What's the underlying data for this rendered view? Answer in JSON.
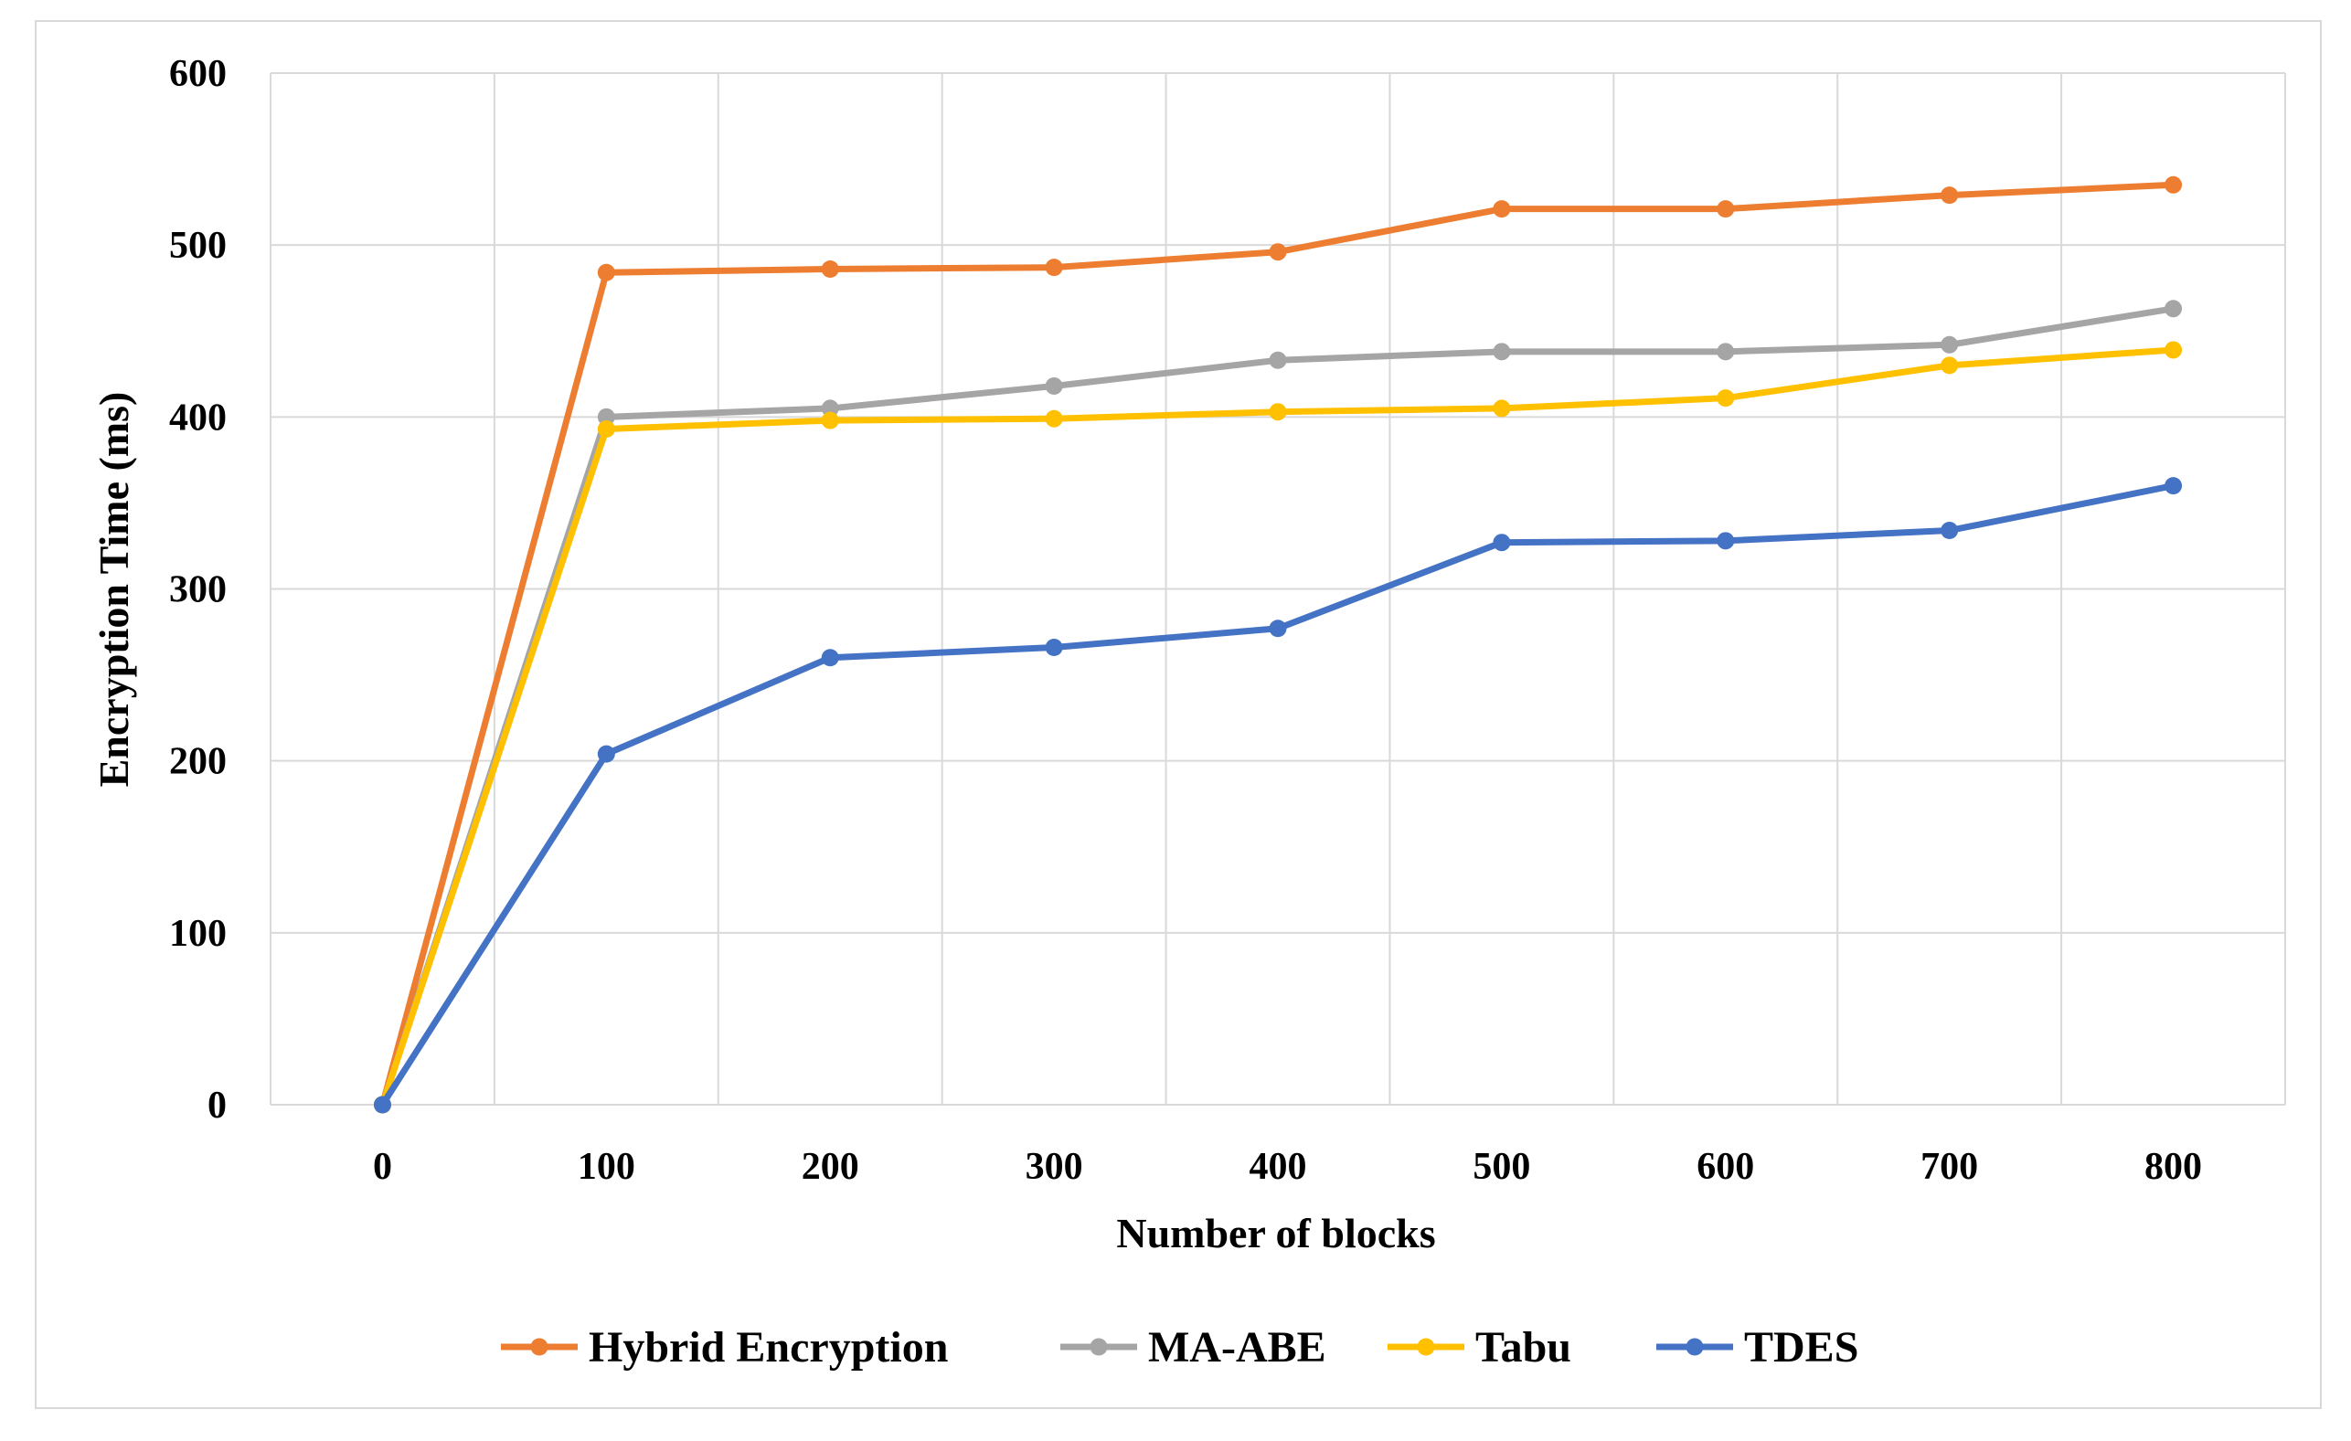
{
  "chart_data": {
    "type": "line",
    "title": "",
    "xlabel": "Number of blocks",
    "ylabel": "Encryption Time (ms)",
    "categories": [
      "0",
      "100",
      "200",
      "300",
      "400",
      "500",
      "600",
      "700",
      "800"
    ],
    "y_ticks": [
      "0",
      "100",
      "200",
      "300",
      "400",
      "500",
      "600"
    ],
    "ylim": [
      0,
      600
    ],
    "grid": true,
    "legend_position": "bottom",
    "series": [
      {
        "name": "Hybrid Encryption",
        "color": "#ED7D31",
        "values": [
          0,
          484,
          486,
          487,
          496,
          521,
          521,
          529,
          535
        ]
      },
      {
        "name": "MA-ABE",
        "color": "#A5A5A5",
        "values": [
          0,
          400,
          405,
          418,
          433,
          438,
          438,
          442,
          463
        ]
      },
      {
        "name": "Tabu",
        "color": "#FFC000",
        "values": [
          0,
          393,
          398,
          399,
          403,
          405,
          411,
          430,
          439
        ]
      },
      {
        "name": "TDES",
        "color": "#4472C4",
        "values": [
          0,
          204,
          260,
          266,
          277,
          327,
          328,
          334,
          360
        ]
      }
    ]
  }
}
